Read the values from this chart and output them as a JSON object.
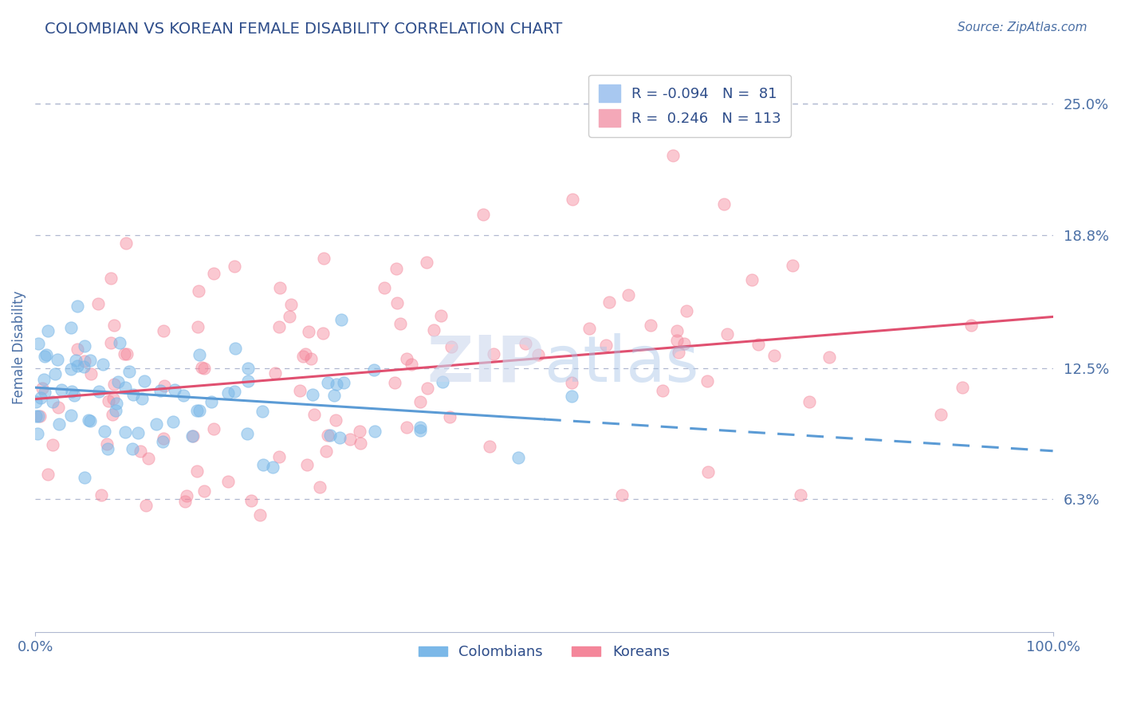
{
  "title": "COLOMBIAN VS KOREAN FEMALE DISABILITY CORRELATION CHART",
  "source_text": "Source: ZipAtlas.com",
  "ylabel": "Female Disability",
  "watermark": "ZIPatlas",
  "xlim": [
    0.0,
    100.0
  ],
  "ylim": [
    0.0,
    27.0
  ],
  "yticks": [
    6.3,
    12.5,
    18.8,
    25.0
  ],
  "ytick_labels": [
    "6.3%",
    "12.5%",
    "18.8%",
    "25.0%"
  ],
  "xticks": [
    0.0,
    100.0
  ],
  "xtick_labels": [
    "0.0%",
    "100.0%"
  ],
  "legend_items": [
    {
      "label": "R = -0.094   N =  81",
      "color": "#a8c8f0"
    },
    {
      "label": "R =  0.246   N = 113",
      "color": "#f4a8b8"
    }
  ],
  "colombian_color": "#7bb8e8",
  "korean_color": "#f4869a",
  "trend_colombian_color": "#5b9bd5",
  "trend_korean_color": "#e05070",
  "background_color": "#ffffff",
  "grid_color": "#b0b8d0",
  "title_color": "#2e4d8a",
  "tick_color": "#4a6fa5",
  "R_colombian": -0.094,
  "N_colombian": 81,
  "R_korean": 0.246,
  "N_korean": 113,
  "seed": 42
}
